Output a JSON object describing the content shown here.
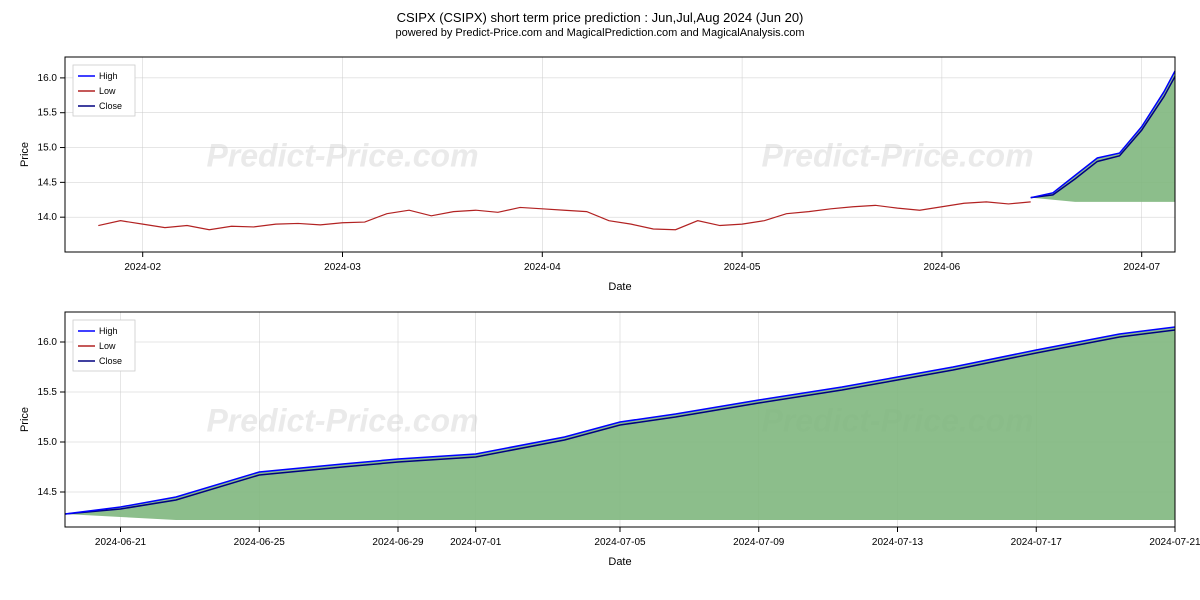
{
  "title": "CSIPX (CSIPX) short term price prediction : Jun,Jul,Aug 2024 (Jun 20)",
  "subtitle": "powered by Predict-Price.com and MagicalPrediction.com and MagicalAnalysis.com",
  "watermark": {
    "text": "Predict-Price.com",
    "color": "#cccccc",
    "opacity": 0.4,
    "fontsize": 32
  },
  "chart1": {
    "type": "line-area",
    "xlabel": "Date",
    "ylabel": "Price",
    "label_fontsize": 11,
    "tick_fontsize": 10,
    "background_color": "#ffffff",
    "grid_color": "#cccccc",
    "border_color": "#000000",
    "ylim": [
      13.5,
      16.3
    ],
    "yticks": [
      14.0,
      14.5,
      15.0,
      15.5,
      16.0
    ],
    "xticks": [
      "2024-02",
      "2024-03",
      "2024-04",
      "2024-05",
      "2024-06",
      "2024-07"
    ],
    "xtick_positions": [
      0.07,
      0.25,
      0.43,
      0.61,
      0.79,
      0.97
    ],
    "legend": {
      "position": "upper-left",
      "items": [
        {
          "label": "High",
          "color": "#0000ff"
        },
        {
          "label": "Low",
          "color": "#b22222"
        },
        {
          "label": "Close",
          "color": "#000080"
        }
      ]
    },
    "historical_line": {
      "color": "#b22222",
      "linewidth": 1.2,
      "x": [
        0.03,
        0.05,
        0.07,
        0.09,
        0.11,
        0.13,
        0.15,
        0.17,
        0.19,
        0.21,
        0.23,
        0.25,
        0.27,
        0.29,
        0.31,
        0.33,
        0.35,
        0.37,
        0.39,
        0.41,
        0.43,
        0.45,
        0.47,
        0.49,
        0.51,
        0.53,
        0.55,
        0.57,
        0.59,
        0.61,
        0.63,
        0.65,
        0.67,
        0.69,
        0.71,
        0.73,
        0.75,
        0.77,
        0.79,
        0.81,
        0.83,
        0.85,
        0.87
      ],
      "y": [
        13.88,
        13.95,
        13.9,
        13.85,
        13.88,
        13.82,
        13.87,
        13.86,
        13.9,
        13.91,
        13.89,
        13.92,
        13.93,
        14.05,
        14.1,
        14.02,
        14.08,
        14.1,
        14.07,
        14.14,
        14.12,
        14.1,
        14.08,
        13.95,
        13.9,
        13.83,
        13.82,
        13.95,
        13.88,
        13.9,
        13.95,
        14.05,
        14.08,
        14.12,
        14.15,
        14.17,
        14.13,
        14.1,
        14.15,
        14.2,
        14.22,
        14.19,
        14.22
      ]
    },
    "prediction_high": {
      "color": "#0000ff",
      "linewidth": 1.5,
      "x": [
        0.87,
        0.89,
        0.91,
        0.93,
        0.95,
        0.97,
        0.99,
        1.0
      ],
      "y": [
        14.28,
        14.35,
        14.6,
        14.85,
        14.92,
        15.3,
        15.8,
        16.1
      ]
    },
    "prediction_close": {
      "color": "#000080",
      "linewidth": 1.5,
      "x": [
        0.87,
        0.89,
        0.91,
        0.93,
        0.95,
        0.97,
        0.99,
        1.0
      ],
      "y": [
        14.28,
        14.32,
        14.55,
        14.8,
        14.88,
        15.25,
        15.73,
        16.02
      ]
    },
    "prediction_area": {
      "fill_color": "#7fb77e",
      "opacity": 0.9,
      "x": [
        0.87,
        0.89,
        0.91,
        0.93,
        0.95,
        0.97,
        0.99,
        1.0
      ],
      "y_top": [
        14.28,
        14.35,
        14.6,
        14.85,
        14.92,
        15.3,
        15.8,
        16.1
      ],
      "y_bot": [
        14.28,
        14.25,
        14.22,
        14.22,
        14.22,
        14.22,
        14.22,
        14.22
      ]
    }
  },
  "chart2": {
    "type": "line-area",
    "xlabel": "Date",
    "ylabel": "Price",
    "label_fontsize": 11,
    "tick_fontsize": 10,
    "background_color": "#ffffff",
    "grid_color": "#cccccc",
    "border_color": "#000000",
    "ylim": [
      14.15,
      16.3
    ],
    "yticks": [
      14.5,
      15.0,
      15.5,
      16.0
    ],
    "xticks": [
      "2024-06-21",
      "2024-06-25",
      "2024-06-29",
      "2024-07-01",
      "2024-07-05",
      "2024-07-09",
      "2024-07-13",
      "2024-07-17",
      "2024-07-21"
    ],
    "xtick_positions": [
      0.05,
      0.175,
      0.3,
      0.37,
      0.5,
      0.625,
      0.75,
      0.875,
      1.0
    ],
    "legend": {
      "position": "upper-left",
      "items": [
        {
          "label": "High",
          "color": "#0000ff"
        },
        {
          "label": "Low",
          "color": "#b22222"
        },
        {
          "label": "Close",
          "color": "#000080"
        }
      ]
    },
    "prediction_high": {
      "color": "#0000ff",
      "linewidth": 1.5,
      "x": [
        0.0,
        0.05,
        0.1,
        0.175,
        0.25,
        0.3,
        0.37,
        0.45,
        0.5,
        0.55,
        0.625,
        0.7,
        0.75,
        0.8,
        0.875,
        0.95,
        1.0
      ],
      "y": [
        14.28,
        14.35,
        14.45,
        14.7,
        14.78,
        14.83,
        14.88,
        15.05,
        15.2,
        15.28,
        15.42,
        15.55,
        15.65,
        15.75,
        15.92,
        16.08,
        16.15
      ]
    },
    "prediction_close": {
      "color": "#000080",
      "linewidth": 1.5,
      "x": [
        0.0,
        0.05,
        0.1,
        0.175,
        0.25,
        0.3,
        0.37,
        0.45,
        0.5,
        0.55,
        0.625,
        0.7,
        0.75,
        0.8,
        0.875,
        0.95,
        1.0
      ],
      "y": [
        14.28,
        14.33,
        14.42,
        14.67,
        14.75,
        14.8,
        14.85,
        15.02,
        15.17,
        15.25,
        15.39,
        15.52,
        15.62,
        15.72,
        15.89,
        16.05,
        16.12
      ]
    },
    "prediction_area": {
      "fill_color": "#7fb77e",
      "opacity": 0.9,
      "x": [
        0.0,
        0.05,
        0.1,
        0.175,
        0.25,
        0.3,
        0.37,
        0.45,
        0.5,
        0.55,
        0.625,
        0.7,
        0.75,
        0.8,
        0.875,
        0.95,
        1.0
      ],
      "y_top": [
        14.28,
        14.35,
        14.45,
        14.7,
        14.78,
        14.83,
        14.88,
        15.05,
        15.2,
        15.28,
        15.42,
        15.55,
        15.65,
        15.75,
        15.92,
        16.08,
        16.15
      ],
      "y_bot": [
        14.28,
        14.25,
        14.22,
        14.22,
        14.22,
        14.22,
        14.22,
        14.22,
        14.22,
        14.22,
        14.22,
        14.22,
        14.22,
        14.22,
        14.22,
        14.22,
        14.22
      ]
    }
  }
}
